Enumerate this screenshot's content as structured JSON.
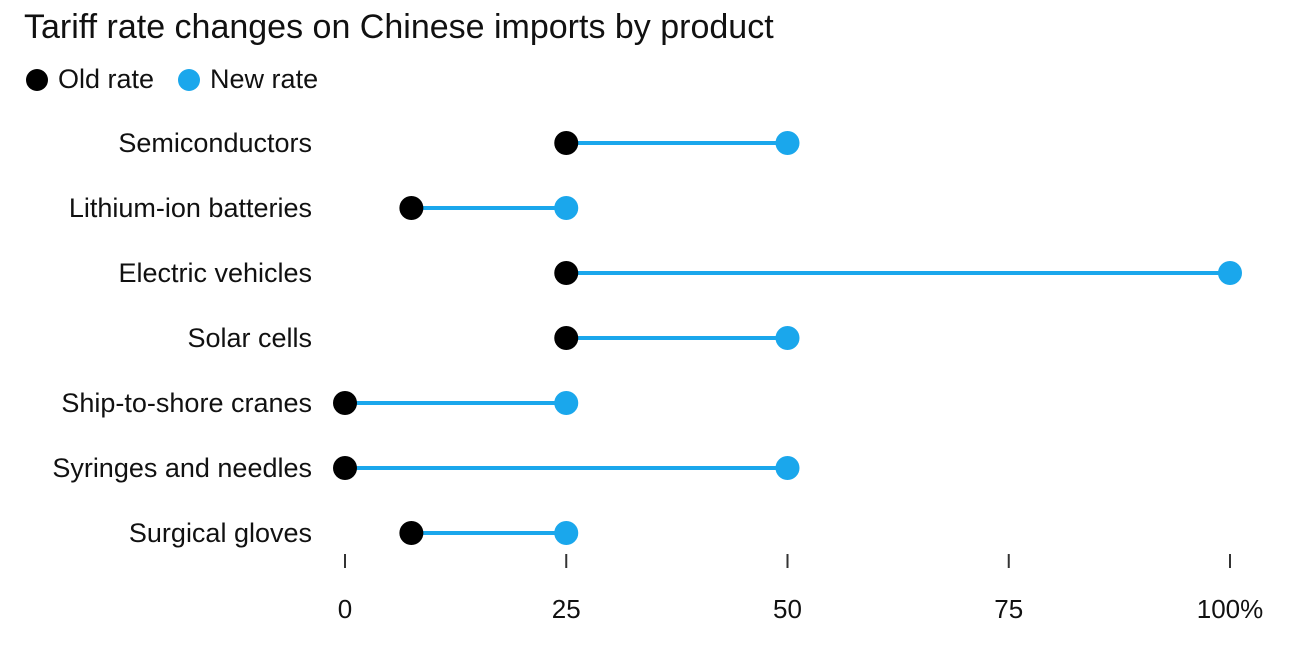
{
  "title": "Tariff rate changes on Chinese imports by product",
  "legend": {
    "old_label": "Old rate",
    "new_label": "New rate"
  },
  "colors": {
    "old": "#000000",
    "new": "#1aa7ec",
    "axis": "#333333"
  },
  "chart_data": {
    "type": "dumbbell",
    "title": "Tariff rate changes on Chinese imports by product",
    "categories": [
      "Semiconductors",
      "Lithium-ion batteries",
      "Electric vehicles",
      "Solar cells",
      "Ship-to-shore cranes",
      "Syringes and needles",
      "Surgical gloves"
    ],
    "series": [
      {
        "name": "Old rate",
        "values": [
          25,
          7.5,
          25,
          25,
          0,
          0,
          7.5
        ]
      },
      {
        "name": "New rate",
        "values": [
          50,
          25,
          100,
          50,
          25,
          50,
          25
        ]
      }
    ],
    "x_ticks": [
      0,
      25,
      50,
      75,
      100
    ],
    "x_tick_labels": [
      "0",
      "25",
      "50",
      "75",
      "100%"
    ],
    "xlim": [
      0,
      100
    ],
    "grid": false,
    "legend_position": "top-left"
  }
}
